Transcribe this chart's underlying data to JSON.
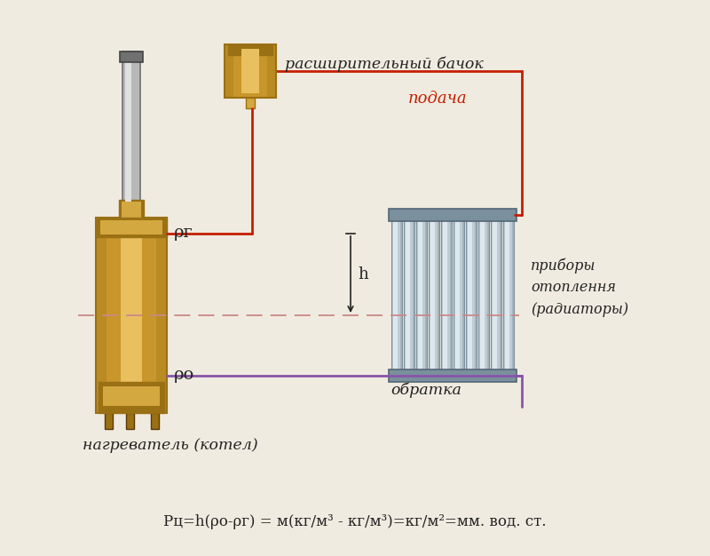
{
  "bg_color": "#f0ebe0",
  "formula_text": "Pц=h(ρо-ρг) = м(кг/м³ - кг/м³)=кг/м²=мм. вод. ст.",
  "label_expansion_tank": "расширительный бачок",
  "label_podacha": "подача",
  "label_devices": "приборы\nотоплення\n(радиаторы)",
  "label_obratka": "обратка",
  "label_heater": "нагреватель (котел)",
  "label_rho_g": "ρг",
  "label_rho_o": "ρо",
  "label_h": "h",
  "red_color": "#c41e00",
  "purple_color": "#8855aa",
  "gold": "#c8962a",
  "gold_light": "#e8c060",
  "gold_mid": "#d4a840",
  "gold_dark": "#9a7015",
  "pipe_gray": "#b8b8b8",
  "pipe_gray_light": "#e0e0e0",
  "pipe_gray_dark": "#707070",
  "rad_gray": "#c0ccd4",
  "rad_gray_light": "#dde8ee",
  "rad_gray_dark": "#7a909c",
  "dashed_color": "#cc8888",
  "text_color": "#222222"
}
